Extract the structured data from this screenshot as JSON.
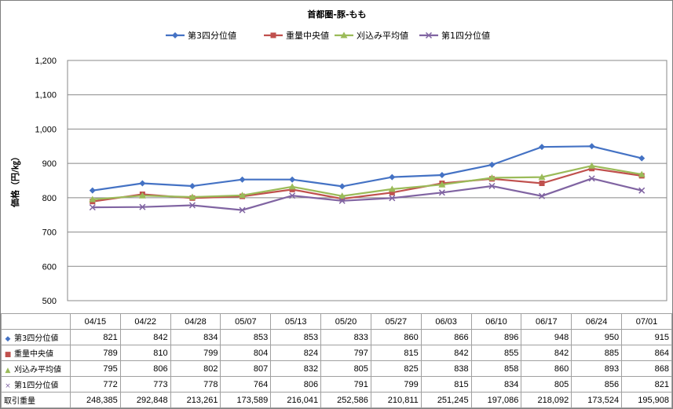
{
  "chart_data": {
    "type": "line",
    "title": "首都圏-豚-もも",
    "ylabel": "価格（円/㎏）",
    "xlabel": "",
    "ylim": [
      500,
      1200
    ],
    "yticks": [
      "500",
      "600",
      "700",
      "800",
      "900",
      "1,000",
      "1,100",
      "1,200"
    ],
    "categories": [
      "04/15",
      "04/22",
      "04/28",
      "05/07",
      "05/13",
      "05/20",
      "05/27",
      "06/03",
      "06/10",
      "06/17",
      "06/24",
      "07/01"
    ],
    "grid": true,
    "legend_position": "top",
    "series": [
      {
        "name": "第3四分位値",
        "color": "#4472c4",
        "marker": "diamond",
        "marker_glyph": "◆",
        "values": [
          821,
          842,
          834,
          853,
          853,
          833,
          860,
          866,
          896,
          948,
          950,
          915
        ]
      },
      {
        "name": "重量中央値",
        "color": "#c0504d",
        "marker": "square",
        "marker_glyph": "■",
        "values": [
          789,
          810,
          799,
          804,
          824,
          797,
          815,
          842,
          855,
          842,
          885,
          864
        ]
      },
      {
        "name": "刈込み平均値",
        "color": "#9bbb59",
        "marker": "triangle",
        "marker_glyph": "▲",
        "values": [
          795,
          806,
          802,
          807,
          832,
          805,
          825,
          838,
          858,
          860,
          893,
          868
        ]
      },
      {
        "name": "第1四分位値",
        "color": "#8064a2",
        "marker": "x",
        "marker_glyph": "×",
        "values": [
          772,
          773,
          778,
          764,
          806,
          791,
          799,
          815,
          834,
          805,
          856,
          821
        ]
      }
    ],
    "table_extra_row": {
      "name": "取引重量",
      "values": [
        "248,385",
        "292,848",
        "213,261",
        "173,589",
        "216,041",
        "252,586",
        "210,811",
        "251,245",
        "197,086",
        "218,092",
        "173,524",
        "195,908"
      ]
    }
  }
}
